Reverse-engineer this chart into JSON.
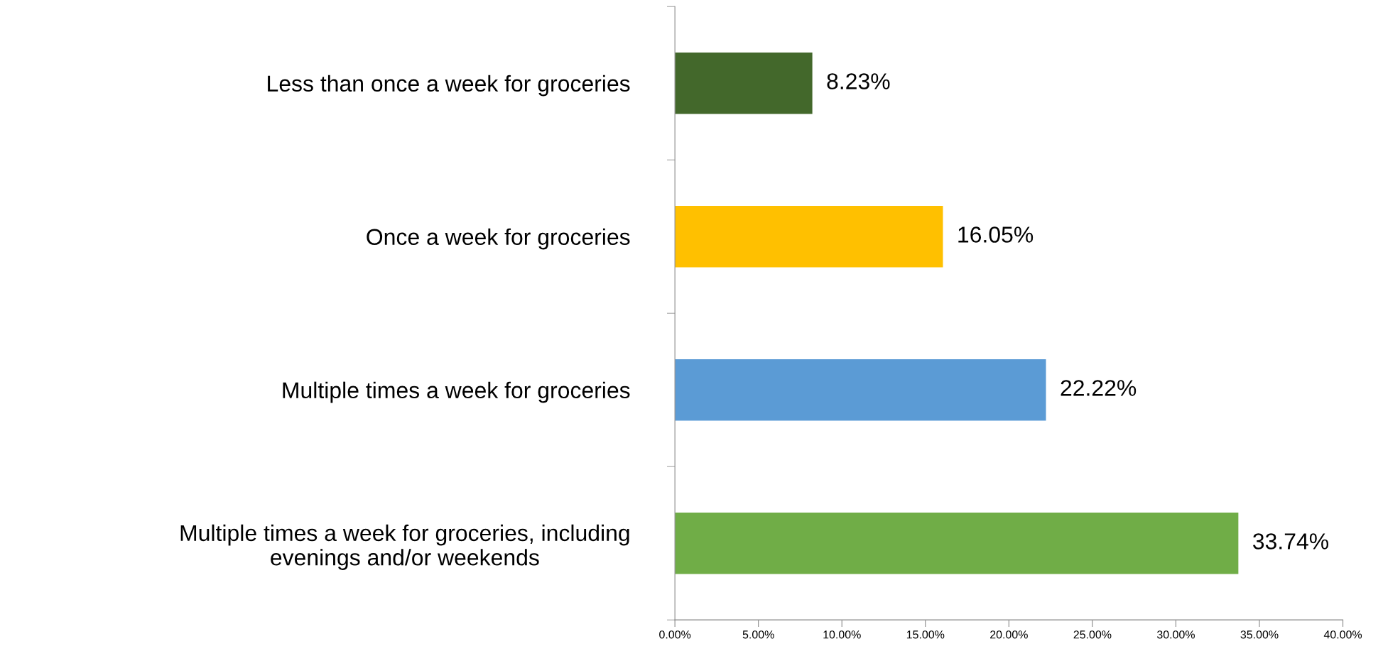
{
  "chart_data": {
    "type": "bar",
    "orientation": "horizontal",
    "categories": [
      "Less than once a week for groceries",
      "Once a week for groceries",
      "Multiple times a week for groceries",
      "Multiple times a week for groceries, including\nevenings and/or weekends"
    ],
    "values": [
      8.23,
      16.05,
      22.22,
      33.74
    ],
    "colors": [
      "#43682b",
      "#ffc000",
      "#5b9bd5",
      "#70ad47"
    ],
    "value_labels": [
      "8.23%",
      "16.05%",
      "22.22%",
      "33.74%"
    ],
    "xlim": [
      0,
      40
    ],
    "xticks": [
      {
        "value": 0,
        "label": "0.00%"
      },
      {
        "value": 5,
        "label": "5.00%"
      },
      {
        "value": 10,
        "label": "10.00%"
      },
      {
        "value": 15,
        "label": "15.00%"
      },
      {
        "value": 20,
        "label": "20.00%"
      },
      {
        "value": 25,
        "label": "25.00%"
      },
      {
        "value": 30,
        "label": "30.00%"
      },
      {
        "value": 35,
        "label": "35.00%"
      },
      {
        "value": 40,
        "label": "40.00%"
      }
    ],
    "grid": false,
    "legend": false
  }
}
